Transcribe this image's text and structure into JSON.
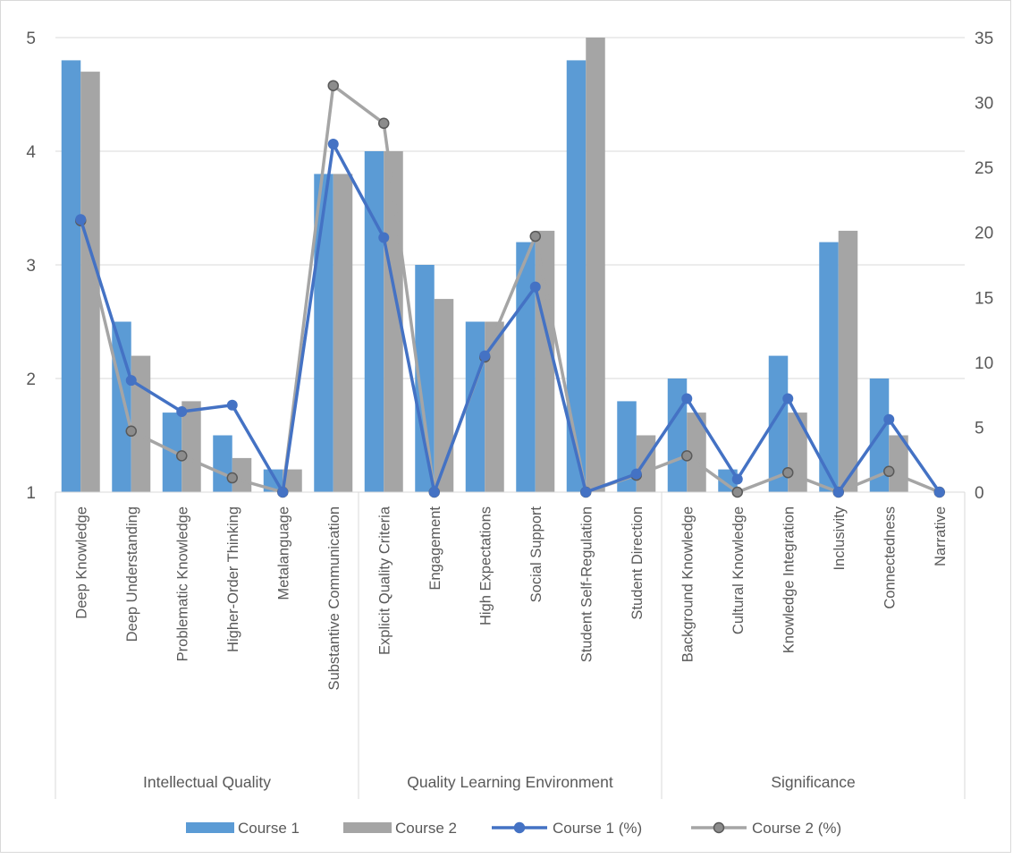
{
  "chart_data": {
    "type": "bar",
    "title": "",
    "categories": [
      "Deep Knowledge",
      "Deep Understanding",
      "Problematic Knowledge",
      "Higher-Order Thinking",
      "Metalanguage",
      "Substantive Communication",
      "Explicit Quality Criteria",
      "Engagement",
      "High Expectations",
      "Social Support",
      "Student Self-Regulation",
      "Student Direction",
      "Background Knowledge",
      "Cultural Knowledge",
      "Knowledge Integration",
      "Inclusivity",
      "Connectedness",
      "Narrative"
    ],
    "groups": [
      {
        "label": "Intellectual Quality",
        "start": 0,
        "end": 5
      },
      {
        "label": "Quality Learning Environment",
        "start": 6,
        "end": 11
      },
      {
        "label": "Significance",
        "start": 12,
        "end": 17
      }
    ],
    "series": [
      {
        "name": "Course 1",
        "type": "bar",
        "axis": "left",
        "color": "#5b9bd5",
        "values": [
          4.8,
          2.5,
          1.7,
          1.5,
          1.2,
          3.8,
          4.0,
          3.0,
          2.5,
          3.2,
          4.8,
          1.8,
          2.0,
          1.2,
          2.2,
          3.2,
          2.0,
          1.0
        ]
      },
      {
        "name": "Course 2",
        "type": "bar",
        "axis": "left",
        "color": "#a5a5a5",
        "values": [
          4.7,
          2.2,
          1.8,
          1.3,
          1.2,
          3.8,
          4.0,
          2.7,
          2.5,
          3.3,
          5.0,
          1.5,
          1.7,
          1.0,
          1.7,
          3.3,
          1.5,
          1.0
        ]
      },
      {
        "name": "Course 1 (%)",
        "type": "line",
        "axis": "right",
        "color": "#4472c4",
        "marker": "circle",
        "values": [
          21.0,
          8.6,
          6.2,
          6.7,
          0.0,
          26.8,
          19.6,
          0.0,
          10.5,
          15.8,
          0.0,
          1.4,
          7.2,
          1.0,
          7.2,
          0.0,
          5.6,
          0.0
        ]
      },
      {
        "name": "Course 2 (%)",
        "type": "line",
        "axis": "right",
        "color": "#a5a5a5",
        "marker": "circle",
        "values": [
          20.9,
          4.7,
          2.8,
          1.1,
          0.0,
          31.3,
          28.4,
          0.0,
          10.4,
          19.7,
          0.0,
          1.3,
          2.8,
          0.0,
          1.5,
          0.0,
          1.6,
          0.0
        ]
      }
    ],
    "y_left": {
      "label": "",
      "min": 1,
      "max": 5,
      "ticks": [
        1,
        2,
        3,
        4,
        5
      ]
    },
    "y_right": {
      "label": "",
      "min": 0,
      "max": 35,
      "ticks": [
        0,
        5,
        10,
        15,
        20,
        25,
        30,
        35
      ]
    },
    "grid": true,
    "legend": {
      "position": "bottom",
      "entries": [
        "Course 1",
        "Course 2",
        "Course 1 (%)",
        "Course 2 (%)"
      ]
    }
  }
}
